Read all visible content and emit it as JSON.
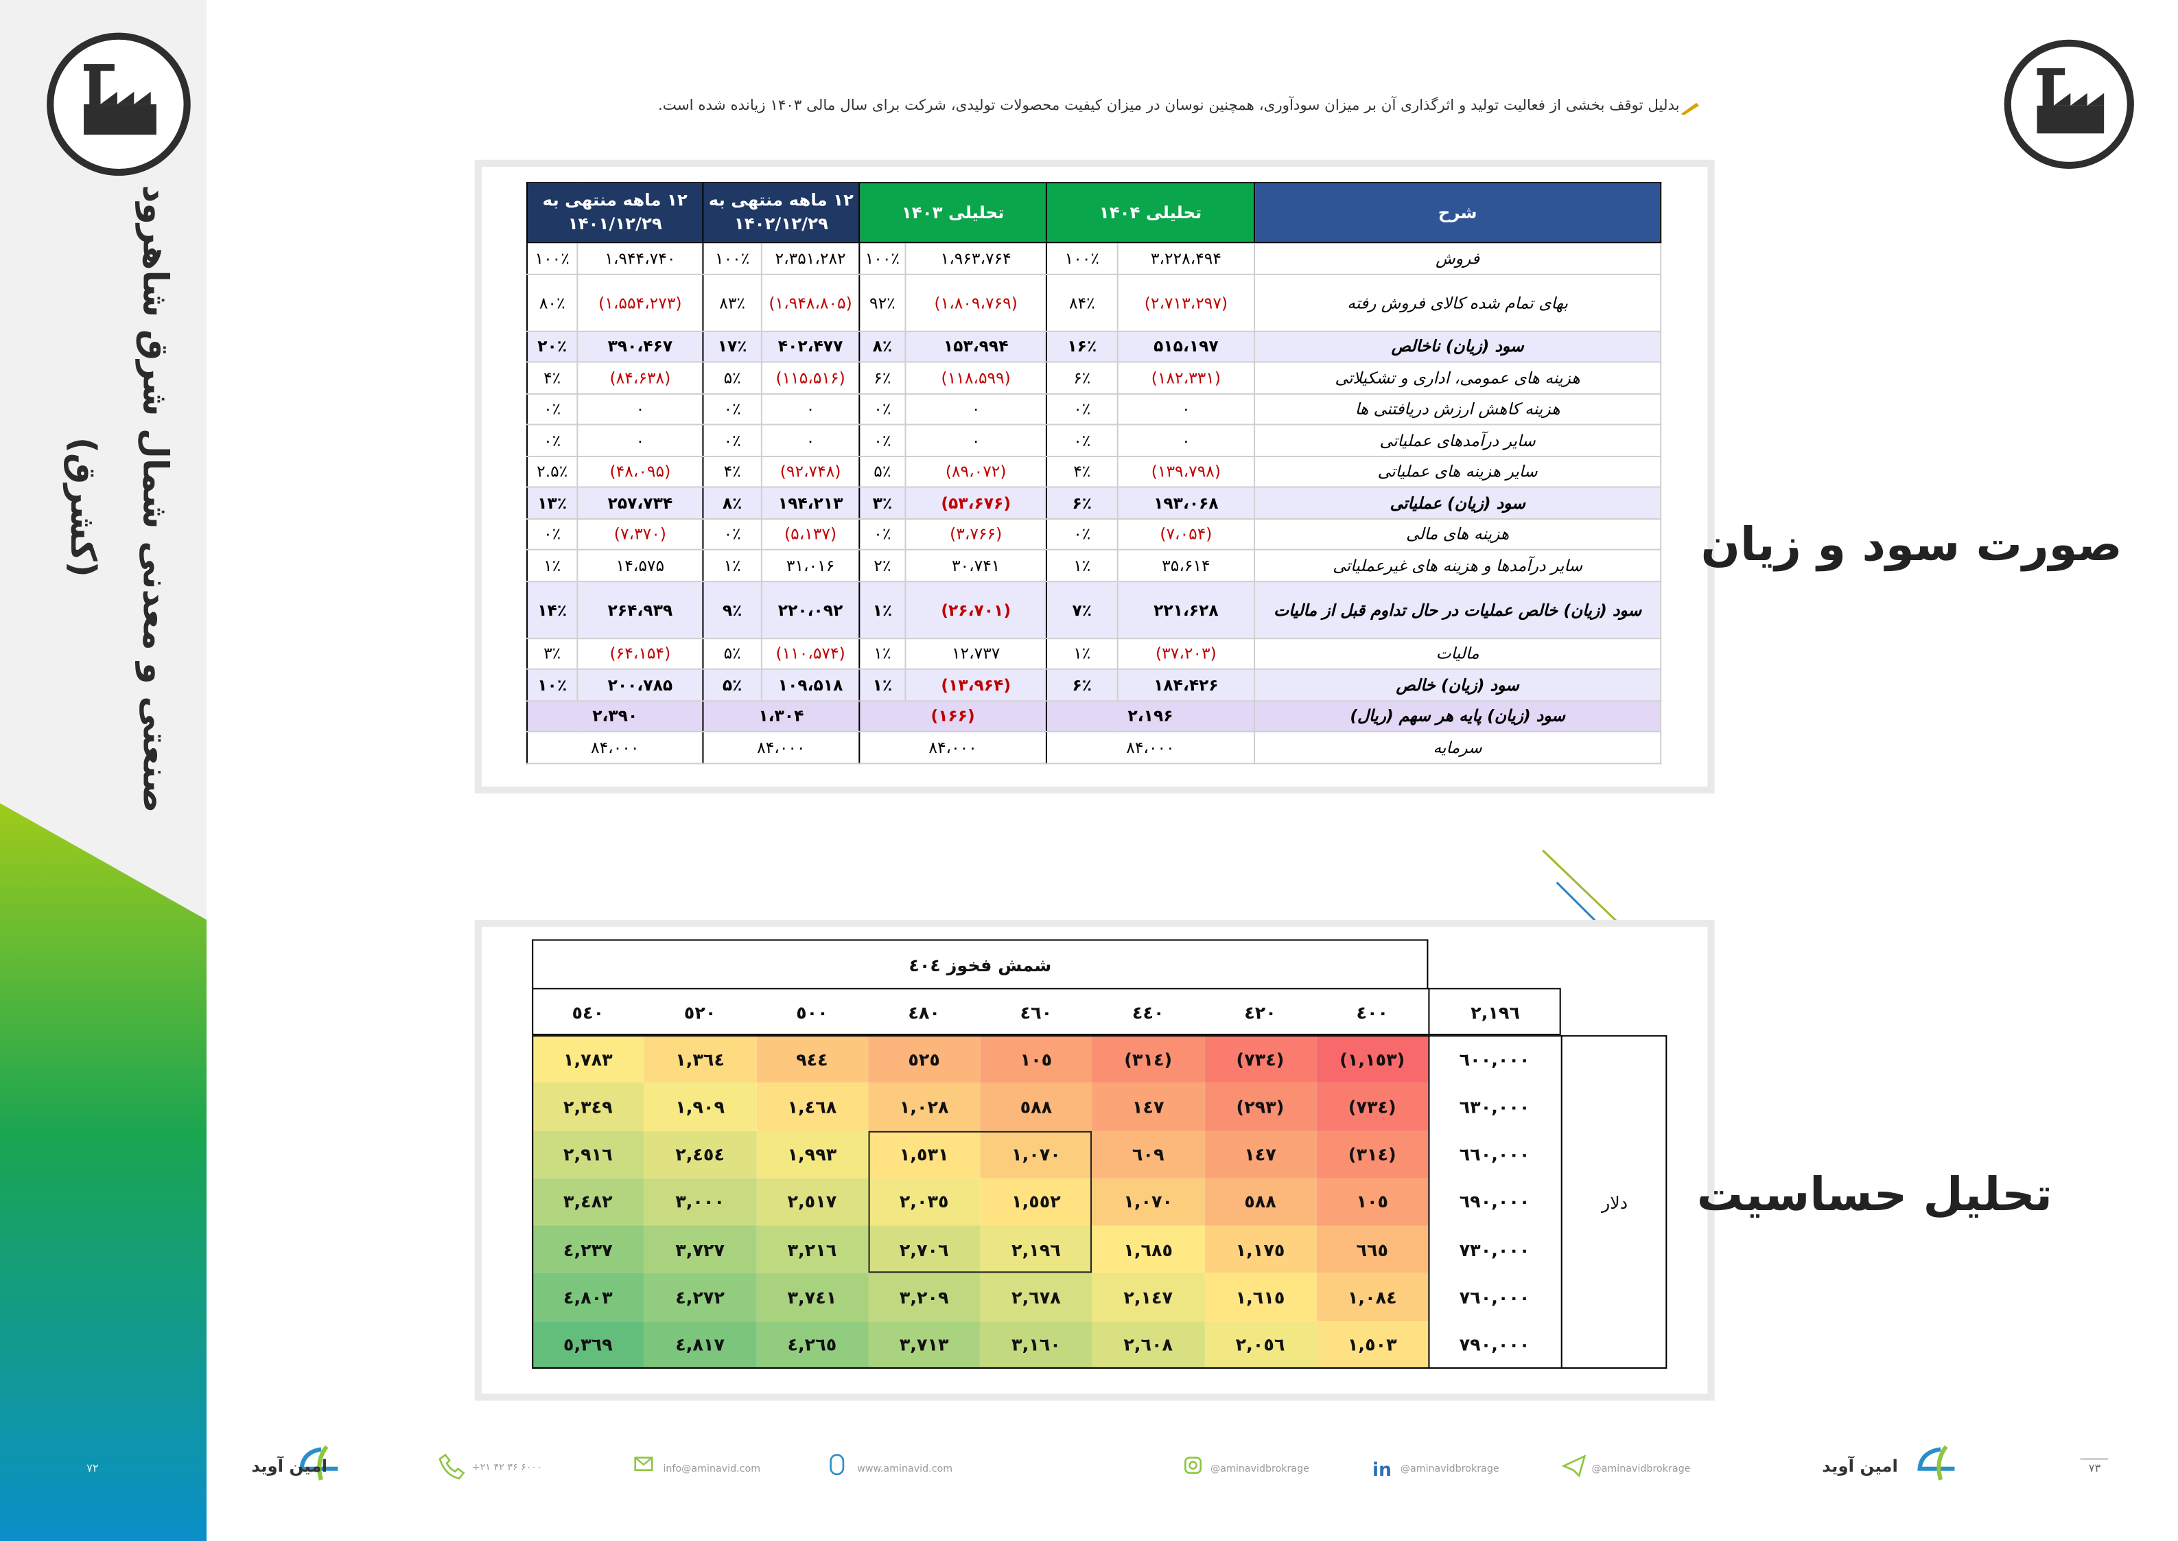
{
  "header": {
    "note": "بدلیل توقف بخشی از فعالیت تولید و اثرگذاری آن بر میزان سودآوری، همچنین نوسان در میزان کیفیت محصولات تولیدی، شرکت برای سال مالی ۱۴۰۳ زیانده شده است."
  },
  "sidebar": {
    "title": "صنعتی و معدنی شمال شرق شاهرود",
    "ticker": "(کشرق)"
  },
  "income_statement": {
    "title": "صورت سود و زیان",
    "headers": [
      "شرح",
      "تحلیلی ۱۴۰۴",
      "تحلیلی ۱۴۰۳",
      "۱۲ ماهه منتهی به ۱۴۰۲/۱۲/۲۹",
      "۱۲ ماهه منتهی به ۱۴۰۱/۱۲/۲۹"
    ],
    "rows": [
      {
        "label": "فروش",
        "cells": [
          [
            "۳،۲۲۸،۴۹۴",
            "۱۰۰٪"
          ],
          [
            "۱،۹۶۳،۷۶۴",
            "۱۰۰٪"
          ],
          [
            "۲،۳۵۱،۲۸۲",
            "۱۰۰٪"
          ],
          [
            "۱،۹۴۴،۷۴۰",
            "۱۰۰٪"
          ]
        ]
      },
      {
        "label": "بهای تمام شده کالای فروش رفته",
        "cells": [
          [
            "(۲،۷۱۳،۲۹۷)",
            "۸۴٪"
          ],
          [
            "(۱،۸۰۹،۷۶۹)",
            "۹۲٪"
          ],
          [
            "(۱،۹۴۸،۸۰۵)",
            "۸۳٪"
          ],
          [
            "(۱،۵۵۴،۲۷۳)",
            "۸۰٪"
          ]
        ]
      },
      {
        "label": "سود (زیان) ناخالص",
        "cells": [
          [
            "۵۱۵،۱۹۷",
            "۱۶٪"
          ],
          [
            "۱۵۳،۹۹۴",
            "۸٪"
          ],
          [
            "۴۰۲،۴۷۷",
            "۱۷٪"
          ],
          [
            "۳۹۰،۴۶۷",
            "۲۰٪"
          ]
        ]
      },
      {
        "label": "هزینه های عمومی، اداری و تشکیلاتی",
        "cells": [
          [
            "(۱۸۲،۳۳۱)",
            "۶٪"
          ],
          [
            "(۱۱۸،۵۹۹)",
            "۶٪"
          ],
          [
            "(۱۱۵،۵۱۶)",
            "۵٪"
          ],
          [
            "(۸۴،۶۳۸)",
            "۴٪"
          ]
        ]
      },
      {
        "label": "هزینه کاهش ارزش دریافتنی ها",
        "cells": [
          [
            "۰",
            "۰٪"
          ],
          [
            "۰",
            "۰٪"
          ],
          [
            "۰",
            "۰٪"
          ],
          [
            "۰",
            "۰٪"
          ]
        ]
      },
      {
        "label": "سایر درآمدهای عملیاتی",
        "cells": [
          [
            "۰",
            "۰٪"
          ],
          [
            "۰",
            "۰٪"
          ],
          [
            "۰",
            "۰٪"
          ],
          [
            "۰",
            "۰٪"
          ]
        ]
      },
      {
        "label": "سایر هزینه های عملیاتی",
        "cells": [
          [
            "(۱۳۹،۷۹۸)",
            "۴٪"
          ],
          [
            "(۸۹،۰۷۲)",
            "۵٪"
          ],
          [
            "(۹۲،۷۴۸)",
            "۴٪"
          ],
          [
            "(۴۸،۰۹۵)",
            "۲.۵٪"
          ]
        ]
      },
      {
        "label": "سود (زیان) عملیاتی",
        "cells": [
          [
            "۱۹۳،۰۶۸",
            "۶٪"
          ],
          [
            "(۵۳،۶۷۶)",
            "۳٪"
          ],
          [
            "۱۹۴،۲۱۳",
            "۸٪"
          ],
          [
            "۲۵۷،۷۳۴",
            "۱۳٪"
          ]
        ]
      },
      {
        "label": "هزینه های مالی",
        "cells": [
          [
            "(۷،۰۵۴)",
            "۰٪"
          ],
          [
            "(۳،۷۶۶)",
            "۰٪"
          ],
          [
            "(۵،۱۳۷)",
            "۰٪"
          ],
          [
            "(۷،۳۷۰)",
            "۰٪"
          ]
        ]
      },
      {
        "label": "سایر درآمدها و هزینه های غیرعملیاتی",
        "cells": [
          [
            "۳۵،۶۱۴",
            "۱٪"
          ],
          [
            "۳۰،۷۴۱",
            "۲٪"
          ],
          [
            "۳۱،۰۱۶",
            "۱٪"
          ],
          [
            "۱۴،۵۷۵",
            "۱٪"
          ]
        ]
      },
      {
        "label": "سود (زیان) خالص عملیات در حال تداوم قبل از مالیات",
        "cells": [
          [
            "۲۲۱،۶۲۸",
            "۷٪"
          ],
          [
            "(۲۶،۷۰۱)",
            "۱٪"
          ],
          [
            "۲۲۰،۰۹۲",
            "۹٪"
          ],
          [
            "۲۶۴،۹۳۹",
            "۱۴٪"
          ]
        ]
      },
      {
        "label": "مالیات",
        "cells": [
          [
            "(۳۷،۲۰۳)",
            "۱٪"
          ],
          [
            "۱۲،۷۳۷",
            "۱٪"
          ],
          [
            "(۱۱۰،۵۷۴)",
            "۵٪"
          ],
          [
            "(۶۴،۱۵۴)",
            "۳٪"
          ]
        ]
      },
      {
        "label": "سود (زیان) خالص",
        "cells": [
          [
            "۱۸۴،۴۲۶",
            "۶٪"
          ],
          [
            "(۱۳،۹۶۴)",
            "۱٪"
          ],
          [
            "۱۰۹،۵۱۸",
            "۵٪"
          ],
          [
            "۲۰۰،۷۸۵",
            "۱۰٪"
          ]
        ]
      },
      {
        "label": "سود (زیان)  پایه هر سهم (ریال)",
        "cells": [
          "۲،۱۹۶",
          "(۱۶۶)",
          "۱،۳۰۴",
          "۲،۳۹۰"
        ]
      },
      {
        "label": "سرمایه",
        "cells": [
          "۸۴،۰۰۰",
          "۸۴،۰۰۰",
          "۸۴،۰۰۰",
          "۸۴،۰۰۰"
        ]
      }
    ]
  },
  "sensitivity": {
    "title": "تحلیل حساسیت",
    "table_title": "شمش فخوز ٤٠٤",
    "corner": "٢,١٩٦",
    "columns": [
      "٤٠٠",
      "٤٢٠",
      "٤٤٠",
      "٤٦٠",
      "٤٨٠",
      "٥٠٠",
      "٥٢٠",
      "٥٤٠"
    ],
    "row_axis_label": "دلار",
    "rows": [
      {
        "label": "٦٠٠,٠٠٠",
        "values": [
          "(١,١٥٣)",
          "(٧٣٤)",
          "(٣١٤)",
          "١٠٥",
          "٥٢٥",
          "٩٤٤",
          "١,٣٦٤",
          "١,٧٨٣"
        ]
      },
      {
        "label": "٦٣٠,٠٠٠",
        "values": [
          "(٧٣٤)",
          "(٢٩٣)",
          "١٤٧",
          "٥٨٨",
          "١,٠٢٨",
          "١,٤٦٨",
          "١,٩٠٩",
          "٢,٣٤٩"
        ]
      },
      {
        "label": "٦٦٠,٠٠٠",
        "values": [
          "(٣١٤)",
          "١٤٧",
          "٦٠٩",
          "١,٠٧٠",
          "١,٥٣١",
          "١,٩٩٣",
          "٢,٤٥٤",
          "٢,٩١٦"
        ]
      },
      {
        "label": "٦٩٠,٠٠٠",
        "values": [
          "١٠٥",
          "٥٨٨",
          "١,٠٧٠",
          "١,٥٥٢",
          "٢,٠٣٥",
          "٢,٥١٧",
          "٣,٠٠٠",
          "٣,٤٨٢"
        ]
      },
      {
        "label": "٧٣٠,٠٠٠",
        "values": [
          "٦٦٥",
          "١,١٧٥",
          "١,٦٨٥",
          "٢,١٩٦",
          "٢,٧٠٦",
          "٣,٢١٦",
          "٣,٧٢٧",
          "٤,٢٣٧"
        ]
      },
      {
        "label": "٧٦٠,٠٠٠",
        "values": [
          "١,٠٨٤",
          "١,٦١٥",
          "٢,١٤٧",
          "٢,٦٧٨",
          "٣,٢٠٩",
          "٣,٧٤١",
          "٤,٢٧٢",
          "٤,٨٠٣"
        ]
      },
      {
        "label": "٧٩٠,٠٠٠",
        "values": [
          "١,٥٠٣",
          "٢,٠٥٦",
          "٢,٦٠٨",
          "٣,١٦٠",
          "٣,٧١٣",
          "٤,٢٦٥",
          "٤,٨١٧",
          "٥,٣٦٩"
        ]
      }
    ]
  },
  "footer": {
    "brand": "امین آوید",
    "phone": "+۲۱ ۴۲ ۳۶ ۶۰۰۰",
    "email": "info@aminavid.com",
    "website": "www.aminavid.com",
    "social": "@aminavidbrokrage",
    "page_left": "۷۲",
    "page_right": "۷۳"
  }
}
